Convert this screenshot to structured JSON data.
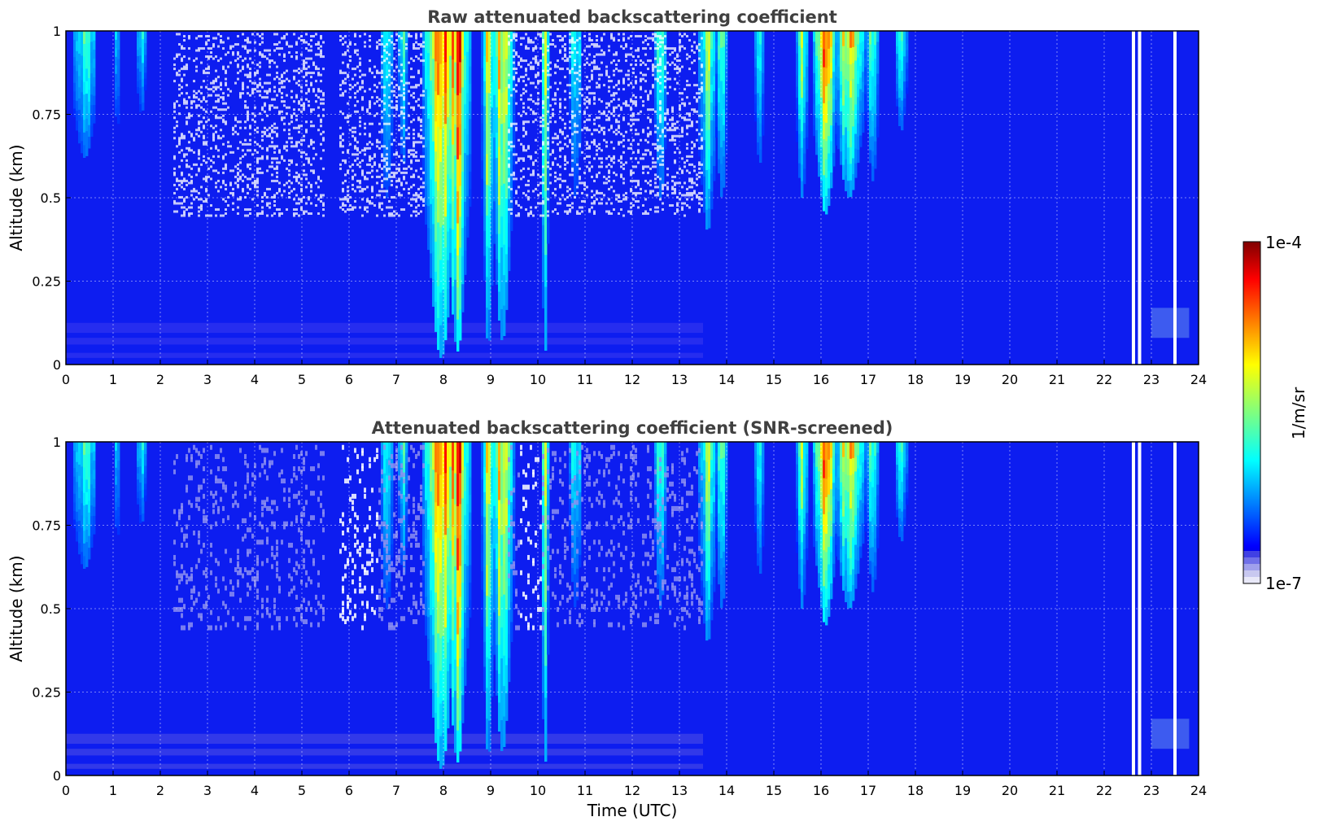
{
  "chart_data": [
    {
      "type": "heatmap",
      "title": "Raw attenuated backscattering coefficient",
      "xlabel": "",
      "ylabel": "Altitude (km)",
      "xlim": [
        0,
        24
      ],
      "ylim": [
        0,
        1
      ],
      "x_ticks": [
        "0",
        "1",
        "2",
        "3",
        "4",
        "5",
        "6",
        "7",
        "8",
        "9",
        "10",
        "11",
        "12",
        "13",
        "14",
        "15",
        "16",
        "17",
        "18",
        "19",
        "20",
        "21",
        "22",
        "23",
        "24"
      ],
      "y_ticks": [
        "0",
        "0.25",
        "0.5",
        "0.75",
        "1"
      ],
      "grid": true,
      "mode": "raw",
      "cloud_events": [
        {
          "center": 0.4,
          "width": 0.25,
          "intensity": 0.4,
          "bottom": 0.62
        },
        {
          "center": 1.1,
          "width": 0.1,
          "intensity": 0.28,
          "bottom": 0.72
        },
        {
          "center": 1.6,
          "width": 0.1,
          "intensity": 0.3,
          "bottom": 0.75
        },
        {
          "center": 6.8,
          "width": 0.15,
          "intensity": 0.35,
          "bottom": 0.5
        },
        {
          "center": 7.15,
          "width": 0.1,
          "intensity": 0.4,
          "bottom": 0.6
        },
        {
          "center": 7.95,
          "width": 0.3,
          "intensity": 0.9,
          "bottom": 0.02
        },
        {
          "center": 8.3,
          "width": 0.22,
          "intensity": 0.85,
          "bottom": 0.04
        },
        {
          "center": 8.95,
          "width": 0.12,
          "intensity": 0.65,
          "bottom": 0.05
        },
        {
          "center": 9.25,
          "width": 0.2,
          "intensity": 0.72,
          "bottom": 0.07
        },
        {
          "center": 10.15,
          "width": 0.07,
          "intensity": 0.55,
          "bottom": 0.02
        },
        {
          "center": 10.8,
          "width": 0.12,
          "intensity": 0.4,
          "bottom": 0.5
        },
        {
          "center": 12.6,
          "width": 0.12,
          "intensity": 0.4,
          "bottom": 0.5
        },
        {
          "center": 13.6,
          "width": 0.18,
          "intensity": 0.5,
          "bottom": 0.4
        },
        {
          "center": 13.9,
          "width": 0.12,
          "intensity": 0.45,
          "bottom": 0.5
        },
        {
          "center": 14.7,
          "width": 0.1,
          "intensity": 0.35,
          "bottom": 0.6
        },
        {
          "center": 15.6,
          "width": 0.12,
          "intensity": 0.45,
          "bottom": 0.5
        },
        {
          "center": 16.1,
          "width": 0.22,
          "intensity": 0.75,
          "bottom": 0.45
        },
        {
          "center": 16.6,
          "width": 0.28,
          "intensity": 0.7,
          "bottom": 0.5
        },
        {
          "center": 17.1,
          "width": 0.12,
          "intensity": 0.5,
          "bottom": 0.55
        },
        {
          "center": 17.7,
          "width": 0.12,
          "intensity": 0.4,
          "bottom": 0.7
        }
      ],
      "white_streaks": [
        22.62,
        22.75,
        23.5
      ]
    },
    {
      "type": "heatmap",
      "title": "Attenuated backscattering coefficient (SNR-screened)",
      "xlabel": "Time (UTC)",
      "ylabel": "Altitude (km)",
      "xlim": [
        0,
        24
      ],
      "ylim": [
        0,
        1
      ],
      "x_ticks": [
        "0",
        "1",
        "2",
        "3",
        "4",
        "5",
        "6",
        "7",
        "8",
        "9",
        "10",
        "11",
        "12",
        "13",
        "14",
        "15",
        "16",
        "17",
        "18",
        "19",
        "20",
        "21",
        "22",
        "23",
        "24"
      ],
      "y_ticks": [
        "0",
        "0.25",
        "0.5",
        "0.75",
        "1"
      ],
      "grid": true,
      "mode": "screened",
      "cloud_events": [
        {
          "center": 0.4,
          "width": 0.25,
          "intensity": 0.4,
          "bottom": 0.62
        },
        {
          "center": 1.1,
          "width": 0.1,
          "intensity": 0.28,
          "bottom": 0.72
        },
        {
          "center": 1.6,
          "width": 0.1,
          "intensity": 0.3,
          "bottom": 0.75
        },
        {
          "center": 6.8,
          "width": 0.15,
          "intensity": 0.35,
          "bottom": 0.5
        },
        {
          "center": 7.15,
          "width": 0.1,
          "intensity": 0.4,
          "bottom": 0.6
        },
        {
          "center": 7.95,
          "width": 0.3,
          "intensity": 0.9,
          "bottom": 0.02
        },
        {
          "center": 8.3,
          "width": 0.22,
          "intensity": 0.85,
          "bottom": 0.04
        },
        {
          "center": 8.95,
          "width": 0.12,
          "intensity": 0.65,
          "bottom": 0.05
        },
        {
          "center": 9.25,
          "width": 0.2,
          "intensity": 0.72,
          "bottom": 0.07
        },
        {
          "center": 10.15,
          "width": 0.07,
          "intensity": 0.55,
          "bottom": 0.02
        },
        {
          "center": 10.8,
          "width": 0.12,
          "intensity": 0.4,
          "bottom": 0.5
        },
        {
          "center": 12.6,
          "width": 0.12,
          "intensity": 0.4,
          "bottom": 0.5
        },
        {
          "center": 13.6,
          "width": 0.18,
          "intensity": 0.5,
          "bottom": 0.4
        },
        {
          "center": 13.9,
          "width": 0.12,
          "intensity": 0.45,
          "bottom": 0.5
        },
        {
          "center": 14.7,
          "width": 0.1,
          "intensity": 0.35,
          "bottom": 0.6
        },
        {
          "center": 15.6,
          "width": 0.12,
          "intensity": 0.45,
          "bottom": 0.5
        },
        {
          "center": 16.1,
          "width": 0.22,
          "intensity": 0.75,
          "bottom": 0.45
        },
        {
          "center": 16.6,
          "width": 0.28,
          "intensity": 0.7,
          "bottom": 0.5
        },
        {
          "center": 17.1,
          "width": 0.12,
          "intensity": 0.5,
          "bottom": 0.55
        },
        {
          "center": 17.7,
          "width": 0.12,
          "intensity": 0.4,
          "bottom": 0.7
        }
      ],
      "white_streaks": [
        22.62,
        22.75,
        23.5
      ]
    }
  ],
  "colorbar": {
    "label": "1/m/sr",
    "max_label": "1e-4",
    "min_label": "1e-7",
    "colormap": "jet",
    "low_end_colors": [
      "#e8e8f8",
      "#c8c8f0",
      "#a0a0ec",
      "#7070e8",
      "#4040e4"
    ]
  }
}
